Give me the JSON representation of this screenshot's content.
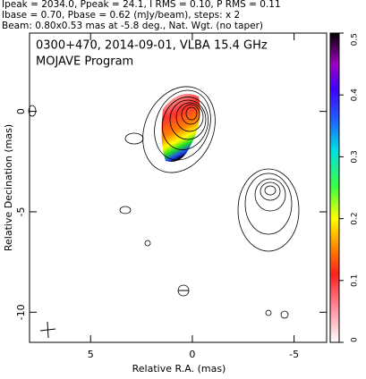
{
  "chart_data": {
    "type": "contour",
    "header": [
      "Ipeak = 2034.0, Ppeak = 24.1, I RMS = 0.10, P RMS = 0.11",
      "Ibase = 0.70, Pbase = 0.62 (mJy/beam), steps: x 2",
      "Beam: 0.80x0.53 mas at -5.8 deg., Nat. Wgt. (no taper)"
    ],
    "title": "0300+470, 2014-09-01, VLBA 15.4 GHz",
    "subtitle": "MOJAVE Program",
    "x_label": "Relative R.A. (mas)",
    "y_label": "Relative Decination (mas)",
    "xlim": [
      8,
      -6.6
    ],
    "xticks": [
      5,
      0,
      -5
    ],
    "ylim": [
      -11.5,
      3.9
    ],
    "yticks": [
      0,
      -5,
      -10
    ],
    "colorbar": {
      "lim": [
        0,
        0.5
      ],
      "ticks": [
        0,
        0.1,
        0.2,
        0.3,
        0.4,
        0.5
      ]
    }
  }
}
